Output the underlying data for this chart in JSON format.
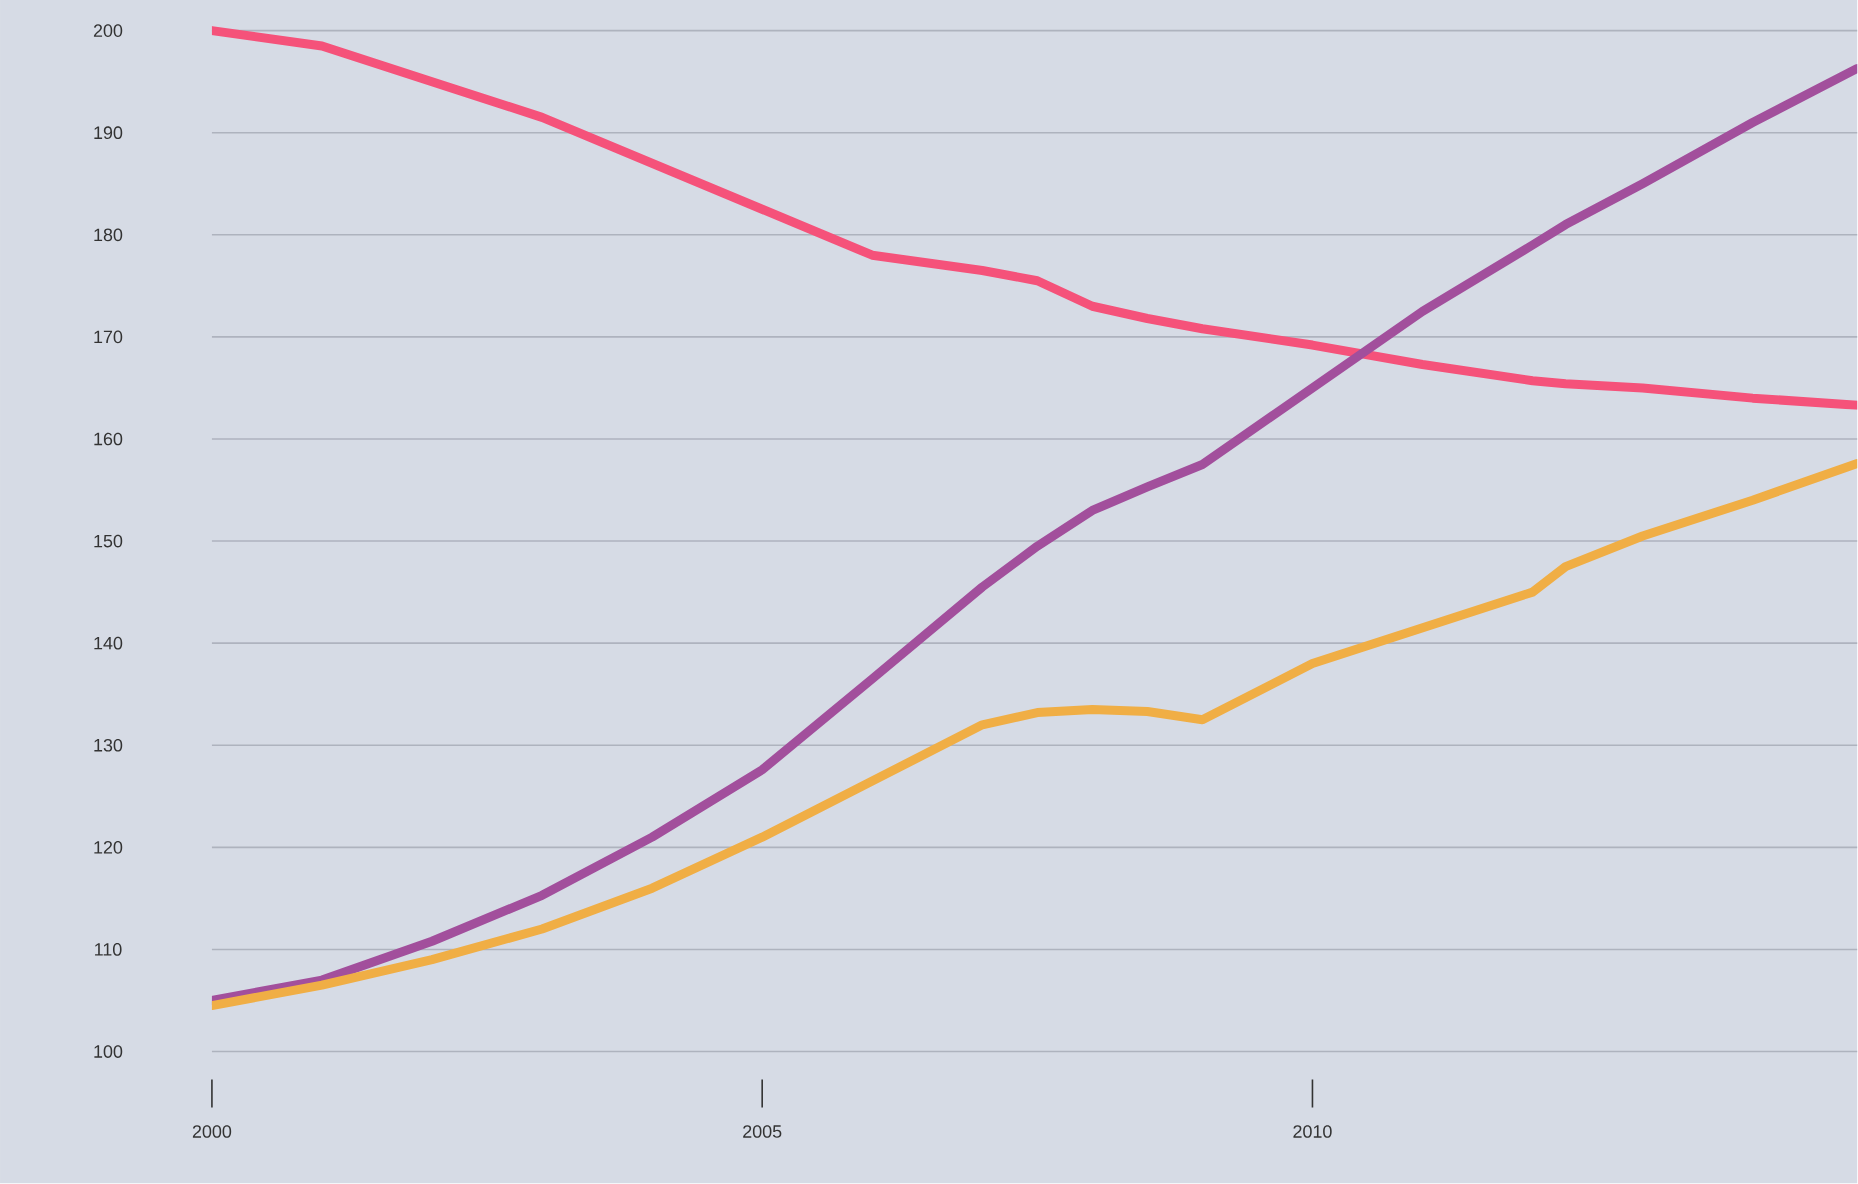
{
  "chart_data": {
    "type": "line",
    "x": [
      2000,
      2001,
      2002,
      2003,
      2004,
      2005,
      2006,
      2007,
      2007.5,
      2008,
      2008.5,
      2009,
      2010,
      2011,
      2012,
      2012.3,
      2013,
      2014,
      2014.95
    ],
    "series": [
      {
        "color": "#f5527a",
        "values": [
          200,
          198.5,
          195,
          191.5,
          187,
          182.5,
          178,
          176.5,
          175.5,
          173,
          171.8,
          170.8,
          169.2,
          167.3,
          165.7,
          165.4,
          165,
          164,
          163.3
        ]
      },
      {
        "color": "#a24f9c",
        "values": [
          105,
          107,
          110.8,
          115.3,
          121,
          127.6,
          136.5,
          145.5,
          149.5,
          153,
          155.3,
          157.5,
          165,
          172.5,
          179,
          181,
          185,
          191,
          196.3
        ]
      },
      {
        "color": "#f0ae45",
        "values": [
          104.5,
          106.5,
          109,
          112,
          116,
          121,
          126.5,
          132,
          133.2,
          133.5,
          133.3,
          132.5,
          138,
          141.5,
          145,
          147.5,
          150.5,
          154,
          157.6
        ]
      }
    ],
    "xlim": [
      2000,
      2014.95
    ],
    "ylim": [
      100,
      203
    ],
    "xticks": [
      2000,
      2005,
      2010
    ],
    "yticks": [
      100,
      110,
      120,
      130,
      140,
      150,
      160,
      170,
      180,
      190,
      200
    ],
    "grid": "y"
  }
}
